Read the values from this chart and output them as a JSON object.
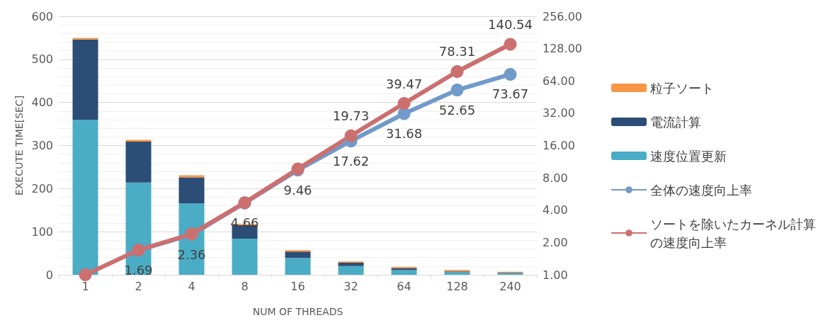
{
  "chart_data": {
    "type": "bar",
    "xlabel": "NUM OF THREADS",
    "ylabel": "EXECUTE TIME[SEC]",
    "categories": [
      "1",
      "2",
      "4",
      "8",
      "16",
      "32",
      "64",
      "128",
      "240"
    ],
    "stacked": true,
    "series": [
      {
        "name": "速度位置更新",
        "color": "#4bacc6",
        "values": [
          360,
          214,
          166,
          84,
          39,
          20,
          11,
          6,
          4
        ]
      },
      {
        "name": "電流計算",
        "color": "#2c4d75",
        "values": [
          186,
          95,
          60,
          31,
          15,
          8,
          4,
          2,
          1
        ]
      },
      {
        "name": "粒子ソート",
        "color": "#f79646",
        "values": [
          4,
          4,
          5,
          3,
          3,
          3,
          3,
          3,
          2
        ]
      },
      {
        "name": "全体の速度向上率",
        "type": "line",
        "axis": "y2",
        "color": "#729aca",
        "marker": "circle",
        "values": [
          null,
          1.69,
          2.36,
          4.66,
          9.46,
          17.62,
          31.68,
          52.65,
          73.67
        ],
        "value_labels": [
          null,
          "1.69",
          "2.36",
          "4.66",
          "9.46",
          "17.62",
          "31.68",
          "52.65",
          "73.67"
        ]
      },
      {
        "name": "ソートを除いたカーネル計算の速度向上率",
        "type": "line",
        "axis": "y2",
        "color": "#cc6f6f",
        "marker": "circle",
        "values": [
          1,
          1.7,
          2.4,
          4.7,
          9.7,
          19.73,
          39.47,
          78.31,
          140.54
        ],
        "value_labels": [
          null,
          null,
          null,
          null,
          null,
          "19.73",
          "39.47",
          "78.31",
          "140.54"
        ]
      }
    ],
    "ylim": [
      0,
      600
    ],
    "yticks": [
      0,
      100,
      200,
      300,
      400,
      500,
      600
    ],
    "y2lim": [
      1,
      256
    ],
    "y2ticks": [
      {
        "value": 1,
        "label": "1.00"
      },
      {
        "value": 2,
        "label": "2.00"
      },
      {
        "value": 4,
        "label": "4.00"
      },
      {
        "value": 8,
        "label": "8.00"
      },
      {
        "value": 16,
        "label": "16.00"
      },
      {
        "value": 32,
        "label": "32.00"
      },
      {
        "value": 64,
        "label": "64.00"
      },
      {
        "value": 128,
        "label": "128.00"
      },
      {
        "value": 256,
        "label": "256.00"
      }
    ],
    "log": "y2",
    "grid": "y",
    "legend": "right"
  }
}
